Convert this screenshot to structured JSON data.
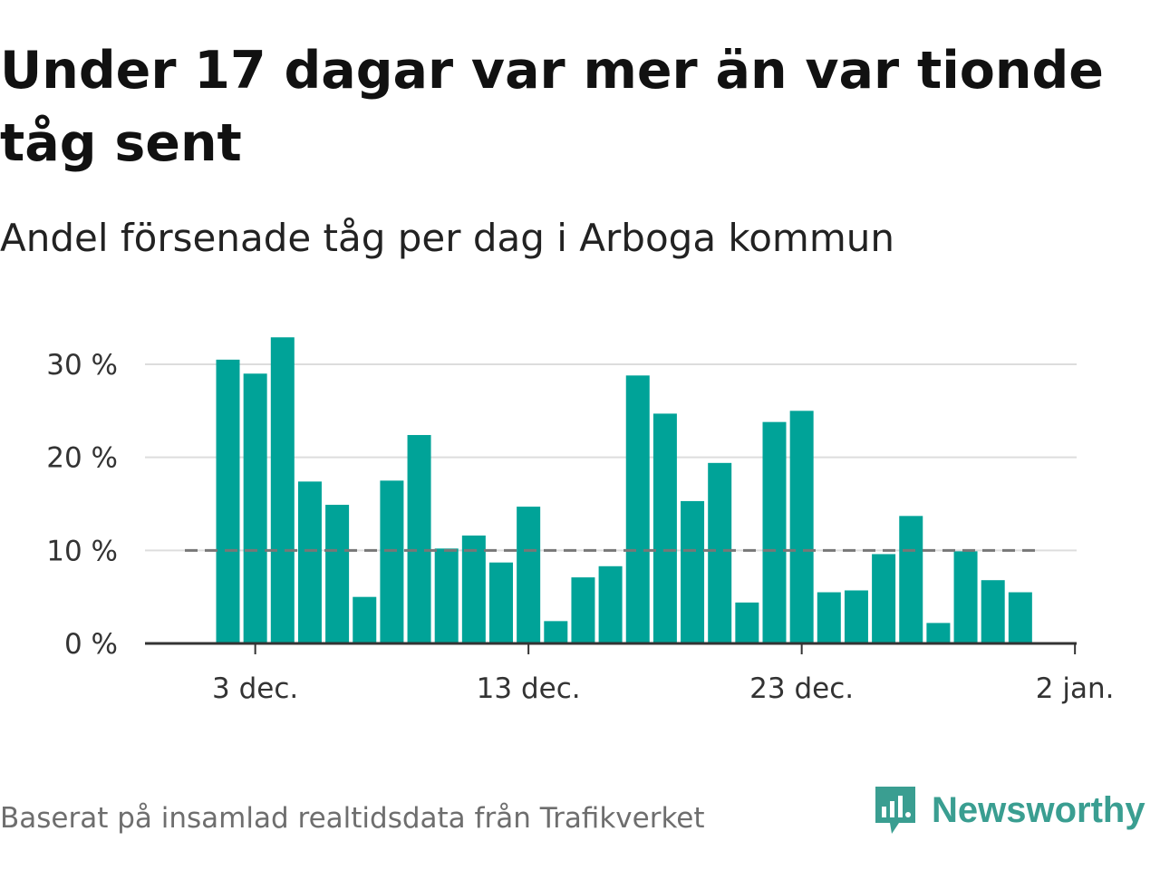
{
  "title": "Under 17 dagar var mer än var tionde tåg sent",
  "subtitle": "Andel försenade tåg per dag i Arboga kommun",
  "source": "Baserat på insamlad realtidsdata från Trafikverket",
  "logo": {
    "text": "Newsworthy",
    "icon": "newsworthy-chart-icon",
    "color": "#3a9e91"
  },
  "chart_data": {
    "type": "bar",
    "x": [
      "2 dec.",
      "3 dec.",
      "4 dec.",
      "5 dec.",
      "6 dec.",
      "7 dec.",
      "8 dec.",
      "9 dec.",
      "10 dec.",
      "11 dec.",
      "12 dec.",
      "13 dec.",
      "14 dec.",
      "15 dec.",
      "16 dec.",
      "17 dec.",
      "18 dec.",
      "19 dec.",
      "20 dec.",
      "21 dec.",
      "22 dec.",
      "23 dec.",
      "24 dec.",
      "25 dec.",
      "26 dec.",
      "27 dec.",
      "28 dec.",
      "29 dec.",
      "30 dec.",
      "31 dec."
    ],
    "values": [
      30.5,
      29.0,
      32.9,
      17.4,
      14.9,
      5.0,
      17.5,
      22.4,
      10.2,
      11.6,
      8.7,
      14.7,
      2.4,
      7.1,
      8.3,
      28.8,
      24.7,
      15.3,
      19.4,
      4.4,
      23.8,
      25.0,
      5.5,
      5.7,
      9.6,
      13.7,
      2.2,
      9.9,
      6.8,
      5.5
    ],
    "ylim": [
      0,
      35
    ],
    "yticks": [
      0,
      10,
      20,
      30
    ],
    "ytick_labels": [
      "0 %",
      "10 %",
      "20 %",
      "30 %"
    ],
    "xticks": [
      "3 dec.",
      "13 dec.",
      "23 dec.",
      "2 jan."
    ],
    "reference_line": 10,
    "bar_color": "#00a398",
    "reference_color": "#777777",
    "grid": true,
    "xlabel": "",
    "ylabel": ""
  }
}
